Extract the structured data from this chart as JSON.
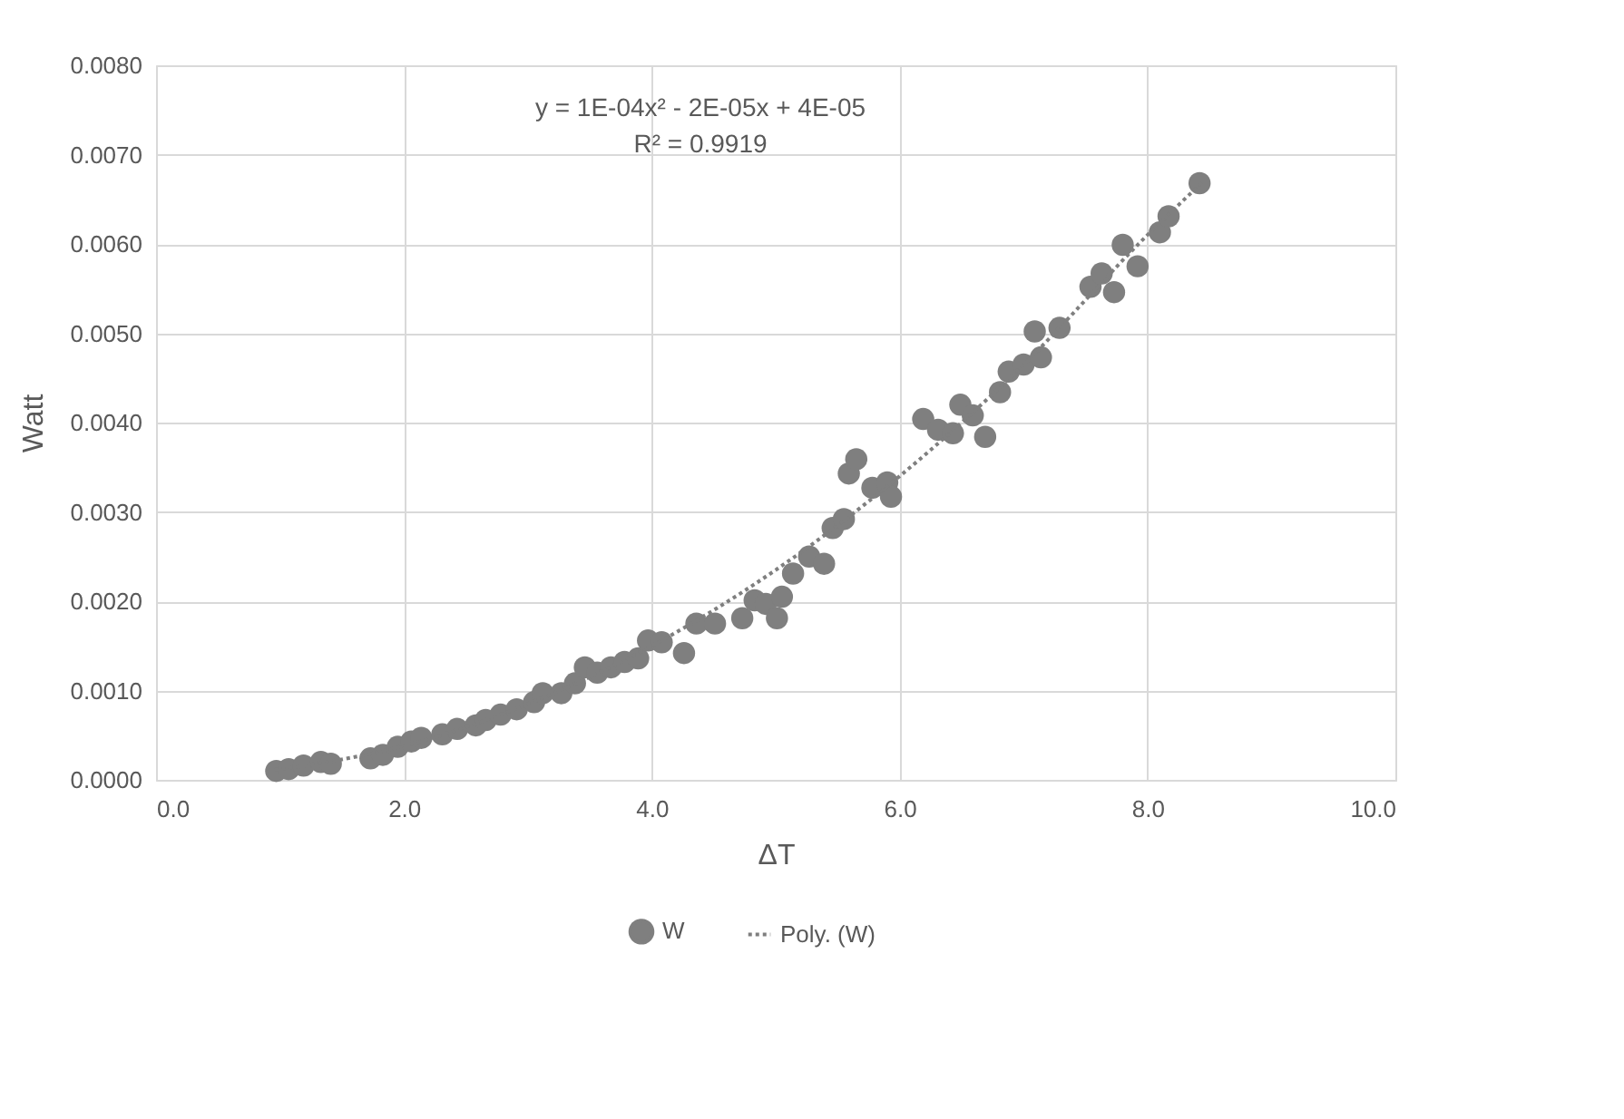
{
  "chart_data": {
    "type": "scatter",
    "xlabel": "ΔT",
    "ylabel": "Watt",
    "xlim": [
      0,
      10
    ],
    "xticks": [
      {
        "value": 0,
        "label": "0.0"
      },
      {
        "value": 2,
        "label": "2.0"
      },
      {
        "value": 4,
        "label": "4.0"
      },
      {
        "value": 6,
        "label": "6.0"
      },
      {
        "value": 8,
        "label": "8.0"
      },
      {
        "value": 10,
        "label": "10.0"
      }
    ],
    "ylim": [
      0,
      0.008
    ],
    "yticks": [
      {
        "value": 0,
        "label": "0.0000"
      },
      {
        "value": 0.001,
        "label": "0.0010"
      },
      {
        "value": 0.002,
        "label": "0.0020"
      },
      {
        "value": 0.003,
        "label": "0.0030"
      },
      {
        "value": 0.004,
        "label": "0.0040"
      },
      {
        "value": 0.005,
        "label": "0.0050"
      },
      {
        "value": 0.006,
        "label": "0.0060"
      },
      {
        "value": 0.007,
        "label": "0.0070"
      },
      {
        "value": 0.008,
        "label": "0.0080"
      }
    ],
    "grid": true,
    "legend": "bottom",
    "marker": "circle",
    "annotations": [
      "y = 1E-04x² - 2E-05x + 4E-05",
      "R² = 0.9919"
    ],
    "series": [
      {
        "name": "W",
        "color": "#7f7f7f",
        "x": [
          0.97,
          1.07,
          1.19,
          1.33,
          1.41,
          1.73,
          1.83,
          1.95,
          2.06,
          2.14,
          2.31,
          2.43,
          2.58,
          2.66,
          2.78,
          2.91,
          3.05,
          3.12,
          3.27,
          3.38,
          3.46,
          3.56,
          3.67,
          3.78,
          3.89,
          3.97,
          4.08,
          4.26,
          4.36,
          4.51,
          4.73,
          4.83,
          4.92,
          5.01,
          5.05,
          5.14,
          5.27,
          5.39,
          5.46,
          5.55,
          5.59,
          5.65,
          5.78,
          5.9,
          5.93,
          6.19,
          6.31,
          6.43,
          6.49,
          6.59,
          6.69,
          6.81,
          6.88,
          7.0,
          7.09,
          7.14,
          7.29,
          7.54,
          7.63,
          7.73,
          7.8,
          7.92,
          8.1,
          8.17,
          8.42
        ],
        "values": [
          0.0001,
          0.00012,
          0.00016,
          0.0002,
          0.00018,
          0.00024,
          0.00028,
          0.00037,
          0.00043,
          0.00047,
          0.00051,
          0.00057,
          0.00061,
          0.00067,
          0.00073,
          0.00079,
          0.00087,
          0.00097,
          0.00097,
          0.00108,
          0.00126,
          0.0012,
          0.00126,
          0.00132,
          0.00136,
          0.00156,
          0.00154,
          0.00142,
          0.00175,
          0.00175,
          0.00181,
          0.00201,
          0.00197,
          0.00181,
          0.00205,
          0.00231,
          0.0025,
          0.00242,
          0.00282,
          0.00292,
          0.00343,
          0.00359,
          0.00327,
          0.00333,
          0.00317,
          0.00404,
          0.00392,
          0.00388,
          0.0042,
          0.00408,
          0.00384,
          0.00434,
          0.00457,
          0.00465,
          0.00502,
          0.00473,
          0.00506,
          0.00552,
          0.00567,
          0.00546,
          0.00599,
          0.00575,
          0.00613,
          0.00631,
          0.00668
        ]
      },
      {
        "name": "Poly. (W)",
        "color": "#7f7f7f",
        "type": "line",
        "line_style": "dotted",
        "marker": "none",
        "x": [
          0.9,
          2,
          3,
          4,
          5,
          6,
          7,
          8,
          8.45
        ],
        "values": [
          0.0001,
          0.00038,
          0.00085,
          0.0015,
          0.00235,
          0.0034,
          0.00465,
          0.0061,
          0.0067
        ]
      }
    ]
  }
}
